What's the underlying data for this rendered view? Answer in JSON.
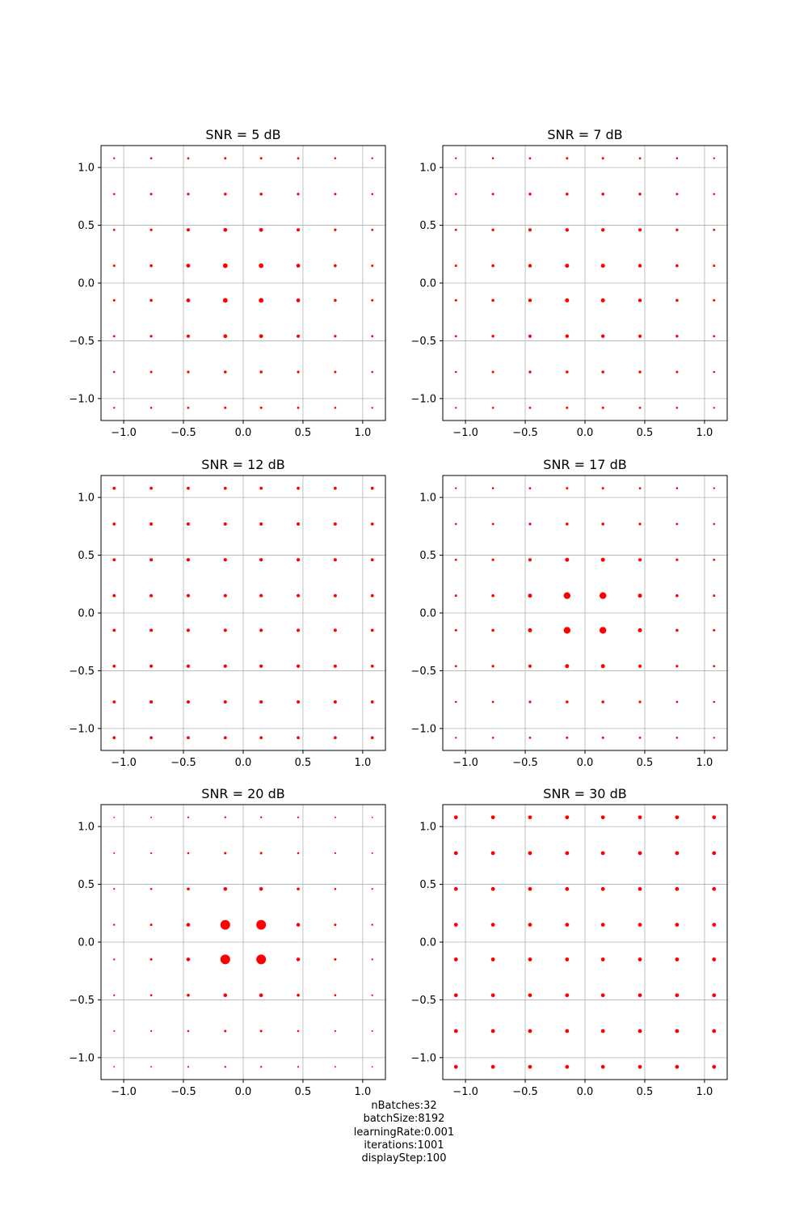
{
  "chart_data": [
    {
      "type": "scatter",
      "title": "SNR = 5 dB",
      "x": [
        -1.08,
        -0.77,
        -0.46,
        -0.15,
        0.15,
        0.46,
        0.77,
        1.08
      ],
      "y": [
        1.08,
        0.77,
        0.46,
        0.15,
        -0.15,
        -0.46,
        -0.77,
        -1.08
      ],
      "point_size": [
        [
          1.2,
          1.3,
          1.4,
          1.5,
          1.5,
          1.4,
          1.3,
          1.2
        ],
        [
          1.3,
          1.5,
          1.6,
          1.8,
          1.8,
          1.6,
          1.5,
          1.3
        ],
        [
          1.4,
          1.6,
          2.0,
          2.4,
          2.4,
          2.0,
          1.6,
          1.4
        ],
        [
          1.5,
          1.8,
          2.4,
          2.9,
          2.9,
          2.4,
          1.8,
          1.5
        ],
        [
          1.5,
          1.8,
          2.4,
          2.9,
          2.9,
          2.4,
          1.8,
          1.5
        ],
        [
          1.4,
          1.6,
          2.0,
          2.4,
          2.4,
          2.0,
          1.6,
          1.4
        ],
        [
          1.3,
          1.5,
          1.6,
          1.8,
          1.8,
          1.6,
          1.5,
          1.3
        ],
        [
          1.2,
          1.3,
          1.4,
          1.5,
          1.5,
          1.4,
          1.3,
          1.2
        ]
      ],
      "xlim": [
        -1.19,
        1.19
      ],
      "ylim": [
        -1.19,
        1.19
      ],
      "xticks": [
        -1.0,
        -0.5,
        0.0,
        0.5,
        1.0
      ],
      "yticks": [
        1.0,
        0.5,
        0.0,
        -0.5,
        -1.0
      ],
      "xtick_labels": [
        "−1.0",
        "−0.5",
        "0.0",
        "0.5",
        "1.0"
      ],
      "ytick_labels": [
        "1.0",
        "0.5",
        "0.0",
        "−0.5",
        "−1.0"
      ],
      "grid": true,
      "color": "#ff0000"
    },
    {
      "type": "scatter",
      "title": "SNR = 7 dB",
      "x": [
        -1.08,
        -0.77,
        -0.46,
        -0.15,
        0.15,
        0.46,
        0.77,
        1.08
      ],
      "y": [
        1.08,
        0.77,
        0.46,
        0.15,
        -0.15,
        -0.46,
        -0.77,
        -1.08
      ],
      "point_size": [
        [
          1.2,
          1.3,
          1.4,
          1.5,
          1.5,
          1.4,
          1.3,
          1.2
        ],
        [
          1.3,
          1.5,
          1.7,
          1.8,
          1.8,
          1.7,
          1.5,
          1.3
        ],
        [
          1.4,
          1.7,
          2.0,
          2.2,
          2.2,
          2.0,
          1.7,
          1.4
        ],
        [
          1.5,
          1.8,
          2.2,
          2.5,
          2.5,
          2.2,
          1.8,
          1.5
        ],
        [
          1.5,
          1.8,
          2.2,
          2.5,
          2.5,
          2.2,
          1.8,
          1.5
        ],
        [
          1.4,
          1.7,
          2.0,
          2.2,
          2.2,
          2.0,
          1.7,
          1.4
        ],
        [
          1.3,
          1.5,
          1.7,
          1.8,
          1.8,
          1.7,
          1.5,
          1.3
        ],
        [
          1.2,
          1.3,
          1.4,
          1.5,
          1.5,
          1.4,
          1.3,
          1.2
        ]
      ],
      "xlim": [
        -1.19,
        1.19
      ],
      "ylim": [
        -1.19,
        1.19
      ],
      "xticks": [
        -1.0,
        -0.5,
        0.0,
        0.5,
        1.0
      ],
      "yticks": [
        1.0,
        0.5,
        0.0,
        -0.5,
        -1.0
      ],
      "xtick_labels": [
        "−1.0",
        "−0.5",
        "0.0",
        "0.5",
        "1.0"
      ],
      "ytick_labels": [
        "1.0",
        "0.5",
        "0.0",
        "−0.5",
        "−1.0"
      ],
      "grid": true,
      "color": "#ff0000"
    },
    {
      "type": "scatter",
      "title": "SNR = 12 dB",
      "x": [
        -1.08,
        -0.77,
        -0.46,
        -0.15,
        0.15,
        0.46,
        0.77,
        1.08
      ],
      "y": [
        1.08,
        0.77,
        0.46,
        0.15,
        -0.15,
        -0.46,
        -0.77,
        -1.08
      ],
      "point_size": [
        [
          1.9,
          1.9,
          1.9,
          1.9,
          1.9,
          1.9,
          1.9,
          1.9
        ],
        [
          1.9,
          2.0,
          2.0,
          2.0,
          2.0,
          2.0,
          2.0,
          1.9
        ],
        [
          1.9,
          2.0,
          2.1,
          2.1,
          2.1,
          2.1,
          2.0,
          1.9
        ],
        [
          1.9,
          2.0,
          2.1,
          2.1,
          2.1,
          2.1,
          2.0,
          1.9
        ],
        [
          1.9,
          2.0,
          2.1,
          2.1,
          2.1,
          2.1,
          2.0,
          1.9
        ],
        [
          1.9,
          2.0,
          2.1,
          2.1,
          2.1,
          2.1,
          2.0,
          1.9
        ],
        [
          1.9,
          2.0,
          2.0,
          2.0,
          2.0,
          2.0,
          2.0,
          1.9
        ],
        [
          1.9,
          1.9,
          1.9,
          1.9,
          1.9,
          1.9,
          1.9,
          1.9
        ]
      ],
      "xlim": [
        -1.19,
        1.19
      ],
      "ylim": [
        -1.19,
        1.19
      ],
      "xticks": [
        -1.0,
        -0.5,
        0.0,
        0.5,
        1.0
      ],
      "yticks": [
        1.0,
        0.5,
        0.0,
        -0.5,
        -1.0
      ],
      "xtick_labels": [
        "−1.0",
        "−0.5",
        "0.0",
        "0.5",
        "1.0"
      ],
      "ytick_labels": [
        "1.0",
        "0.5",
        "0.0",
        "−0.5",
        "−1.0"
      ],
      "grid": true,
      "color": "#ff0000"
    },
    {
      "type": "scatter",
      "title": "SNR = 17 dB",
      "x": [
        -1.08,
        -0.77,
        -0.46,
        -0.15,
        0.15,
        0.46,
        0.77,
        1.08
      ],
      "y": [
        1.08,
        0.77,
        0.46,
        0.15,
        -0.15,
        -0.46,
        -0.77,
        -1.08
      ],
      "point_size": [
        [
          1.2,
          1.3,
          1.4,
          1.5,
          1.5,
          1.4,
          1.3,
          1.2
        ],
        [
          1.3,
          1.4,
          1.6,
          1.8,
          1.8,
          1.6,
          1.4,
          1.3
        ],
        [
          1.4,
          1.6,
          2.0,
          2.5,
          2.5,
          2.0,
          1.6,
          1.4
        ],
        [
          1.5,
          1.8,
          2.5,
          4.2,
          4.2,
          2.5,
          1.8,
          1.5
        ],
        [
          1.5,
          1.8,
          2.5,
          4.2,
          4.2,
          2.5,
          1.8,
          1.5
        ],
        [
          1.4,
          1.6,
          2.0,
          2.5,
          2.5,
          2.0,
          1.6,
          1.4
        ],
        [
          1.3,
          1.4,
          1.6,
          1.8,
          1.8,
          1.6,
          1.4,
          1.3
        ],
        [
          1.2,
          1.3,
          1.4,
          1.5,
          1.5,
          1.4,
          1.3,
          1.2
        ]
      ],
      "xlim": [
        -1.19,
        1.19
      ],
      "ylim": [
        -1.19,
        1.19
      ],
      "xticks": [
        -1.0,
        -0.5,
        0.0,
        0.5,
        1.0
      ],
      "yticks": [
        1.0,
        0.5,
        0.0,
        -0.5,
        -1.0
      ],
      "xtick_labels": [
        "−1.0",
        "−0.5",
        "0.0",
        "0.5",
        "1.0"
      ],
      "ytick_labels": [
        "1.0",
        "0.5",
        "0.0",
        "−0.5",
        "−1.0"
      ],
      "grid": true,
      "color": "#ff0000"
    },
    {
      "type": "scatter",
      "title": "SNR = 20 dB",
      "x": [
        -1.08,
        -0.77,
        -0.46,
        -0.15,
        0.15,
        0.46,
        0.77,
        1.08
      ],
      "y": [
        1.08,
        0.77,
        0.46,
        0.15,
        -0.15,
        -0.46,
        -0.77,
        -1.08
      ],
      "point_size": [
        [
          0.9,
          1.0,
          1.1,
          1.2,
          1.2,
          1.1,
          1.0,
          0.9
        ],
        [
          1.0,
          1.1,
          1.3,
          1.5,
          1.5,
          1.3,
          1.1,
          1.0
        ],
        [
          1.1,
          1.3,
          1.8,
          2.3,
          2.3,
          1.8,
          1.3,
          1.1
        ],
        [
          1.2,
          1.5,
          2.3,
          6.0,
          6.0,
          2.3,
          1.5,
          1.2
        ],
        [
          1.2,
          1.5,
          2.3,
          6.0,
          6.0,
          2.3,
          1.5,
          1.2
        ],
        [
          1.1,
          1.3,
          1.8,
          2.3,
          2.3,
          1.8,
          1.3,
          1.1
        ],
        [
          1.0,
          1.1,
          1.3,
          1.5,
          1.5,
          1.3,
          1.1,
          1.0
        ],
        [
          0.9,
          1.0,
          1.1,
          1.2,
          1.2,
          1.1,
          1.0,
          0.9
        ]
      ],
      "xlim": [
        -1.19,
        1.19
      ],
      "ylim": [
        -1.19,
        1.19
      ],
      "xticks": [
        -1.0,
        -0.5,
        0.0,
        0.5,
        1.0
      ],
      "yticks": [
        1.0,
        0.5,
        0.0,
        -0.5,
        -1.0
      ],
      "xtick_labels": [
        "−1.0",
        "−0.5",
        "0.0",
        "0.5",
        "1.0"
      ],
      "ytick_labels": [
        "1.0",
        "0.5",
        "0.0",
        "−0.5",
        "−1.0"
      ],
      "grid": true,
      "color": "#ff0000"
    },
    {
      "type": "scatter",
      "title": "SNR = 30 dB",
      "x": [
        -1.08,
        -0.77,
        -0.46,
        -0.15,
        0.15,
        0.46,
        0.77,
        1.08
      ],
      "y": [
        1.08,
        0.77,
        0.46,
        0.15,
        -0.15,
        -0.46,
        -0.77,
        -1.08
      ],
      "point_size": [
        [
          2.4,
          2.4,
          2.4,
          2.4,
          2.4,
          2.4,
          2.4,
          2.4
        ],
        [
          2.4,
          2.4,
          2.4,
          2.4,
          2.4,
          2.4,
          2.4,
          2.4
        ],
        [
          2.4,
          2.4,
          2.4,
          2.4,
          2.4,
          2.4,
          2.4,
          2.4
        ],
        [
          2.4,
          2.4,
          2.4,
          2.4,
          2.4,
          2.4,
          2.4,
          2.4
        ],
        [
          2.4,
          2.4,
          2.4,
          2.4,
          2.4,
          2.4,
          2.4,
          2.4
        ],
        [
          2.4,
          2.4,
          2.4,
          2.4,
          2.4,
          2.4,
          2.4,
          2.4
        ],
        [
          2.4,
          2.4,
          2.4,
          2.4,
          2.4,
          2.4,
          2.4,
          2.4
        ],
        [
          2.4,
          2.4,
          2.4,
          2.4,
          2.4,
          2.4,
          2.4,
          2.4
        ]
      ],
      "xlim": [
        -1.19,
        1.19
      ],
      "ylim": [
        -1.19,
        1.19
      ],
      "xticks": [
        -1.0,
        -0.5,
        0.0,
        0.5,
        1.0
      ],
      "yticks": [
        1.0,
        0.5,
        0.0,
        -0.5,
        -1.0
      ],
      "xtick_labels": [
        "−1.0",
        "−0.5",
        "0.0",
        "0.5",
        "1.0"
      ],
      "ytick_labels": [
        "1.0",
        "0.5",
        "0.0",
        "−0.5",
        "−1.0"
      ],
      "grid": true,
      "color": "#ff0000"
    }
  ],
  "footer": {
    "lines": [
      "nBatches:32",
      "batchSize:8192",
      "learningRate:0.001",
      "iterations:1001",
      "displayStep:100"
    ]
  },
  "colors": {
    "points": "#ff0000",
    "grid": "#b0b0b0",
    "axes": "#000000",
    "background": "#ffffff"
  }
}
